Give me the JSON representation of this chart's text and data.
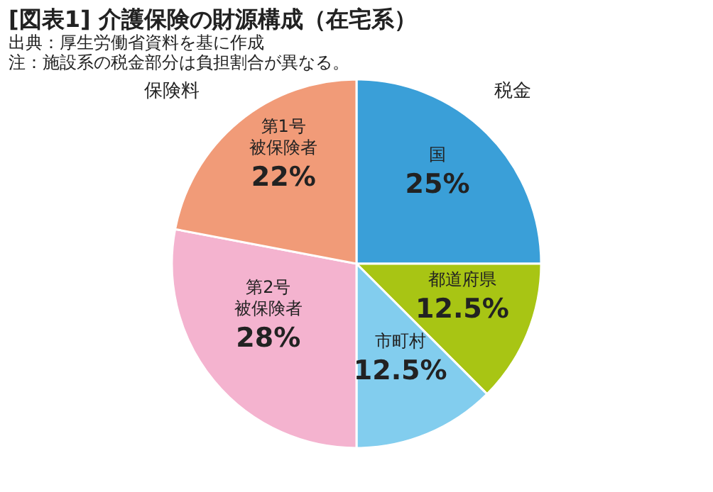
{
  "chart_data": {
    "type": "pie",
    "title": "[図表1] 介護保険の財源構成（在宅系）",
    "subtitle": "出典：厚生労働省資料を基に作成",
    "annotations": [
      "注：施設系の税金部分は負担割合が異なる。",
      "税金",
      "保険料"
    ],
    "categories": [
      "国",
      "都道府県",
      "市町村",
      "第2号被保険者",
      "第1号被保険者"
    ],
    "values": [
      25,
      12.5,
      12.5,
      28,
      22
    ],
    "value_labels": [
      "25%",
      "12.5%",
      "12.5%",
      "28%",
      "22%"
    ],
    "colors": [
      "#3a9fd8",
      "#a8c514",
      "#82cdee",
      "#f4b3cf",
      "#f19b78"
    ]
  }
}
